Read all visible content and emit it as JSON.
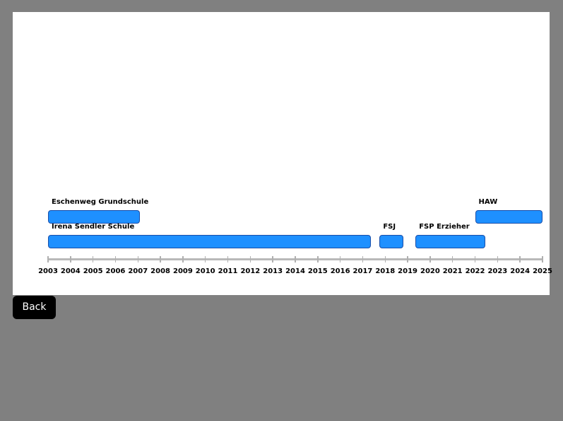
{
  "timeline": {
    "axis": {
      "start_year": 2003,
      "end_year": 2025,
      "years": [
        "2003",
        "2004",
        "2005",
        "2006",
        "2007",
        "2008",
        "2009",
        "2010",
        "2011",
        "2012",
        "2013",
        "2014",
        "2015",
        "2016",
        "2017",
        "2018",
        "2019",
        "2020",
        "2021",
        "2022",
        "2023",
        "2024",
        "2025"
      ]
    },
    "entries": [
      {
        "label": "Eschenweg Grundschule",
        "start": 2003.0,
        "end": 2007.1,
        "row": 2
      },
      {
        "label": "Irena Sendler Schule",
        "start": 2003.0,
        "end": 2017.35,
        "row": 1
      },
      {
        "label": "FSJ",
        "start": 2017.75,
        "end": 2018.8,
        "row": 1
      },
      {
        "label": "FSP Erzieher",
        "start": 2019.35,
        "end": 2022.45,
        "row": 1
      },
      {
        "label": "HAW",
        "start": 2022.0,
        "end": 2025.0,
        "row": 2
      }
    ],
    "bar_color": "#1e90ff",
    "bar_border_color": "#1a4ea8"
  },
  "controls": {
    "back_label": "Back"
  }
}
